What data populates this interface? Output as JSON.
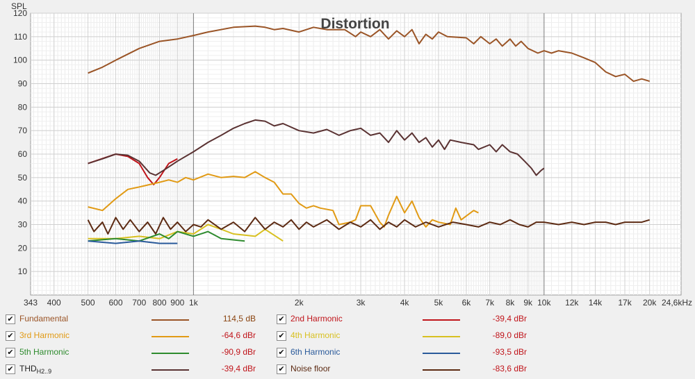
{
  "chart_data": {
    "type": "line",
    "title": "Distortion",
    "ylabel": "SPL",
    "xscale": "log",
    "xlim": [
      343,
      24600
    ],
    "ylim": [
      0,
      120
    ],
    "grid": true,
    "x_ticks": [
      {
        "v": 343,
        "label": "343"
      },
      {
        "v": 400,
        "label": "400"
      },
      {
        "v": 500,
        "label": "500"
      },
      {
        "v": 600,
        "label": "600"
      },
      {
        "v": 700,
        "label": "700"
      },
      {
        "v": 800,
        "label": "800"
      },
      {
        "v": 900,
        "label": "900"
      },
      {
        "v": 1000,
        "label": "1k"
      },
      {
        "v": 2000,
        "label": "2k"
      },
      {
        "v": 3000,
        "label": "3k"
      },
      {
        "v": 4000,
        "label": "4k"
      },
      {
        "v": 5000,
        "label": "5k"
      },
      {
        "v": 6000,
        "label": "6k"
      },
      {
        "v": 7000,
        "label": "7k"
      },
      {
        "v": 8000,
        "label": "8k"
      },
      {
        "v": 9000,
        "label": "9k"
      },
      {
        "v": 10000,
        "label": "10k"
      },
      {
        "v": 12000,
        "label": "12k"
      },
      {
        "v": 14000,
        "label": "14k"
      },
      {
        "v": 17000,
        "label": "17k"
      },
      {
        "v": 20000,
        "label": "20k"
      },
      {
        "v": 24600,
        "label": "24,6kHz"
      }
    ],
    "y_ticks": [
      10,
      20,
      30,
      40,
      50,
      60,
      70,
      80,
      90,
      100,
      110,
      120
    ],
    "series": [
      {
        "name": "Fundamental",
        "color": "#9a5426",
        "value": "114,5 dB",
        "points": [
          [
            500,
            94.5
          ],
          [
            550,
            97
          ],
          [
            600,
            100
          ],
          [
            700,
            105
          ],
          [
            800,
            108
          ],
          [
            900,
            109
          ],
          [
            1000,
            110.5
          ],
          [
            1100,
            112
          ],
          [
            1300,
            114
          ],
          [
            1500,
            114.5
          ],
          [
            1600,
            114
          ],
          [
            1700,
            113
          ],
          [
            1800,
            113.5
          ],
          [
            2000,
            112
          ],
          [
            2200,
            114
          ],
          [
            2400,
            113
          ],
          [
            2700,
            113
          ],
          [
            2900,
            110
          ],
          [
            3000,
            112
          ],
          [
            3200,
            110
          ],
          [
            3400,
            113
          ],
          [
            3600,
            109
          ],
          [
            3800,
            112.5
          ],
          [
            4000,
            110
          ],
          [
            4200,
            113
          ],
          [
            4400,
            107
          ],
          [
            4600,
            111
          ],
          [
            4800,
            109
          ],
          [
            5000,
            112
          ],
          [
            5300,
            110
          ],
          [
            6000,
            109.5
          ],
          [
            6300,
            107
          ],
          [
            6600,
            110
          ],
          [
            7000,
            107
          ],
          [
            7300,
            109
          ],
          [
            7600,
            106
          ],
          [
            8000,
            109
          ],
          [
            8300,
            106
          ],
          [
            8600,
            108
          ],
          [
            9000,
            105
          ],
          [
            9600,
            103
          ],
          [
            10000,
            104
          ],
          [
            10500,
            103
          ],
          [
            11000,
            104
          ],
          [
            12000,
            103
          ],
          [
            13000,
            101
          ],
          [
            14000,
            99
          ],
          [
            15000,
            95
          ],
          [
            16000,
            93
          ],
          [
            17000,
            94
          ],
          [
            18000,
            91
          ],
          [
            19000,
            92
          ],
          [
            20000,
            91
          ]
        ]
      },
      {
        "name": "2nd Harmonic",
        "color": "#c0141a",
        "value": "-39,4 dBr",
        "points": [
          [
            500,
            56
          ],
          [
            600,
            60
          ],
          [
            650,
            59
          ],
          [
            700,
            56
          ],
          [
            740,
            50
          ],
          [
            770,
            47
          ],
          [
            800,
            50
          ],
          [
            850,
            56
          ],
          [
            900,
            58
          ]
        ]
      },
      {
        "name": "3rd Harmonic",
        "color": "#e19a14",
        "value": "-64,6 dBr",
        "points": [
          [
            500,
            37.5
          ],
          [
            550,
            36
          ],
          [
            600,
            41
          ],
          [
            650,
            45
          ],
          [
            700,
            46
          ],
          [
            800,
            48
          ],
          [
            850,
            49
          ],
          [
            900,
            48
          ],
          [
            950,
            50
          ],
          [
            1000,
            49
          ],
          [
            1100,
            51.5
          ],
          [
            1200,
            50
          ],
          [
            1300,
            50.5
          ],
          [
            1400,
            50
          ],
          [
            1500,
            52.5
          ],
          [
            1600,
            50
          ],
          [
            1700,
            48
          ],
          [
            1800,
            43
          ],
          [
            1900,
            43
          ],
          [
            2000,
            39
          ],
          [
            2100,
            37
          ],
          [
            2200,
            38
          ],
          [
            2300,
            37
          ],
          [
            2500,
            36
          ],
          [
            2600,
            30
          ],
          [
            2800,
            31
          ],
          [
            2900,
            32
          ],
          [
            3000,
            38
          ],
          [
            3200,
            38
          ],
          [
            3400,
            31
          ],
          [
            3500,
            29
          ],
          [
            3600,
            34
          ],
          [
            3800,
            42
          ],
          [
            4000,
            35
          ],
          [
            4200,
            40
          ],
          [
            4400,
            33
          ],
          [
            4600,
            29
          ],
          [
            4800,
            32
          ],
          [
            5000,
            31
          ],
          [
            5400,
            30
          ],
          [
            5600,
            37
          ],
          [
            5800,
            32
          ],
          [
            6300,
            36
          ],
          [
            6500,
            35
          ]
        ]
      },
      {
        "name": "4th Harmonic",
        "color": "#d8c020",
        "value": "-89,0 dBr",
        "points": [
          [
            500,
            24
          ],
          [
            600,
            24
          ],
          [
            700,
            25
          ],
          [
            800,
            24
          ],
          [
            900,
            27
          ],
          [
            1000,
            26
          ],
          [
            1100,
            30
          ],
          [
            1200,
            28
          ],
          [
            1300,
            26
          ],
          [
            1500,
            25
          ],
          [
            1600,
            28
          ],
          [
            1800,
            23
          ]
        ]
      },
      {
        "name": "5th Harmonic",
        "color": "#2e8b2e",
        "value": "-90,9 dBr",
        "points": [
          [
            500,
            23
          ],
          [
            600,
            24
          ],
          [
            700,
            23
          ],
          [
            800,
            26
          ],
          [
            850,
            24
          ],
          [
            900,
            27
          ],
          [
            1000,
            25
          ],
          [
            1100,
            27
          ],
          [
            1200,
            24
          ],
          [
            1400,
            23
          ]
        ]
      },
      {
        "name": "6th Harmonic",
        "color": "#2a5a9a",
        "value": "-93,5 dBr",
        "points": [
          [
            500,
            23
          ],
          [
            600,
            22
          ],
          [
            700,
            23
          ],
          [
            800,
            22
          ],
          [
            900,
            22
          ]
        ]
      },
      {
        "name": "THD",
        "sub": "H2..9",
        "color": "#5a3232",
        "value": "-39,4 dBr",
        "points": [
          [
            500,
            56
          ],
          [
            550,
            58
          ],
          [
            600,
            60
          ],
          [
            650,
            59.5
          ],
          [
            700,
            57
          ],
          [
            750,
            52
          ],
          [
            780,
            51
          ],
          [
            820,
            53
          ],
          [
            900,
            57
          ],
          [
            1000,
            61
          ],
          [
            1100,
            65
          ],
          [
            1200,
            68
          ],
          [
            1300,
            71
          ],
          [
            1400,
            73
          ],
          [
            1500,
            74.5
          ],
          [
            1600,
            74
          ],
          [
            1700,
            72
          ],
          [
            1800,
            73
          ],
          [
            2000,
            70
          ],
          [
            2200,
            69
          ],
          [
            2400,
            70.5
          ],
          [
            2600,
            68
          ],
          [
            2800,
            70
          ],
          [
            3000,
            71
          ],
          [
            3200,
            68
          ],
          [
            3400,
            69
          ],
          [
            3600,
            65
          ],
          [
            3800,
            70
          ],
          [
            4000,
            66
          ],
          [
            4200,
            69
          ],
          [
            4400,
            65
          ],
          [
            4600,
            67
          ],
          [
            4800,
            63
          ],
          [
            5000,
            66
          ],
          [
            5200,
            62
          ],
          [
            5400,
            66
          ],
          [
            5800,
            65
          ],
          [
            6300,
            64
          ],
          [
            6500,
            62
          ],
          [
            7000,
            64
          ],
          [
            7300,
            61
          ],
          [
            7600,
            64
          ],
          [
            8000,
            61
          ],
          [
            8400,
            60
          ],
          [
            8800,
            57
          ],
          [
            9200,
            54
          ],
          [
            9500,
            51
          ],
          [
            9800,
            53
          ],
          [
            10000,
            54
          ]
        ]
      },
      {
        "name": "Noise floor",
        "color": "#5c2a12",
        "value": "-83,6 dBr",
        "points": [
          [
            500,
            32
          ],
          [
            520,
            27
          ],
          [
            550,
            31
          ],
          [
            570,
            26
          ],
          [
            600,
            33
          ],
          [
            630,
            28
          ],
          [
            660,
            32
          ],
          [
            700,
            27
          ],
          [
            740,
            31
          ],
          [
            780,
            26
          ],
          [
            820,
            33
          ],
          [
            860,
            28
          ],
          [
            900,
            31
          ],
          [
            950,
            27
          ],
          [
            1000,
            30
          ],
          [
            1050,
            29
          ],
          [
            1100,
            32
          ],
          [
            1200,
            28
          ],
          [
            1300,
            31
          ],
          [
            1400,
            27
          ],
          [
            1500,
            33
          ],
          [
            1600,
            28
          ],
          [
            1700,
            31
          ],
          [
            1800,
            29
          ],
          [
            1900,
            32
          ],
          [
            2000,
            28
          ],
          [
            2100,
            31
          ],
          [
            2200,
            29
          ],
          [
            2400,
            32
          ],
          [
            2600,
            28
          ],
          [
            2800,
            31
          ],
          [
            3000,
            29
          ],
          [
            3200,
            32
          ],
          [
            3400,
            28
          ],
          [
            3600,
            31
          ],
          [
            3800,
            29
          ],
          [
            4000,
            32
          ],
          [
            4300,
            29
          ],
          [
            4600,
            31
          ],
          [
            5000,
            29
          ],
          [
            5500,
            31
          ],
          [
            6000,
            30
          ],
          [
            6500,
            29
          ],
          [
            7000,
            31
          ],
          [
            7500,
            30
          ],
          [
            8000,
            32
          ],
          [
            8500,
            30
          ],
          [
            9000,
            29
          ],
          [
            9500,
            31
          ],
          [
            10000,
            31
          ],
          [
            11000,
            30
          ],
          [
            12000,
            31
          ],
          [
            13000,
            30
          ],
          [
            14000,
            31
          ],
          [
            15000,
            31
          ],
          [
            16000,
            30
          ],
          [
            17000,
            31
          ],
          [
            18000,
            31
          ],
          [
            19000,
            31
          ],
          [
            20000,
            32
          ]
        ]
      }
    ]
  }
}
